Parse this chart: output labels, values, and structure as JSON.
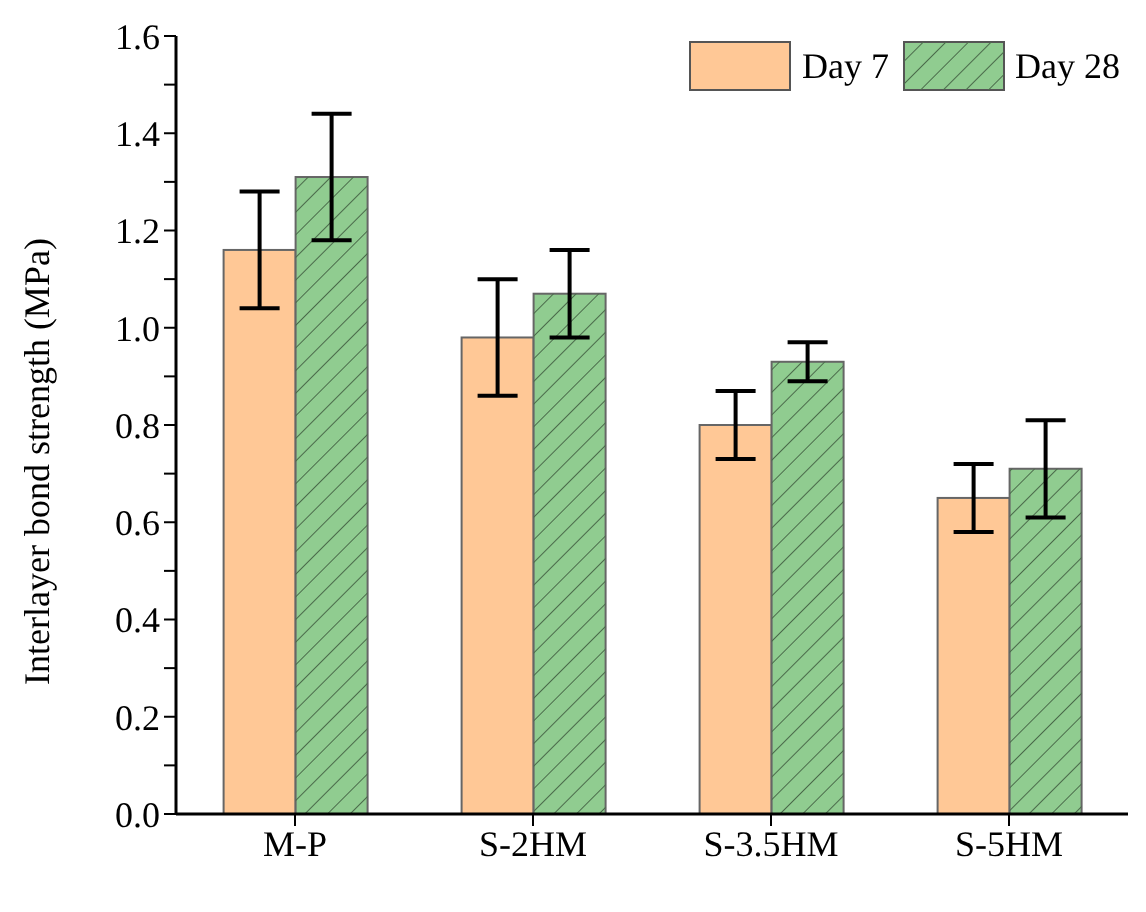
{
  "chart_data": {
    "type": "bar",
    "ylabel": "Interlayer bond strength (MPa)",
    "categories": [
      "M-P",
      "S-2HM",
      "S-3.5HM",
      "S-5HM"
    ],
    "series": [
      {
        "name": "Day 7",
        "color": "#ffc896",
        "values": [
          1.16,
          0.98,
          0.8,
          0.65
        ],
        "errors": [
          0.12,
          0.12,
          0.07,
          0.07
        ]
      },
      {
        "name": "Day 28",
        "color": "#90cc90",
        "values": [
          1.31,
          1.07,
          0.93,
          0.71
        ],
        "errors": [
          0.13,
          0.09,
          0.04,
          0.1
        ]
      }
    ],
    "ylim": [
      0,
      1.6
    ],
    "yticks": [
      {
        "value": 0,
        "label": "0.0"
      },
      {
        "value": 0.1,
        "label": null
      },
      {
        "value": 0.2,
        "label": "0.2"
      },
      {
        "value": 0.3,
        "label": null
      },
      {
        "value": 0.4,
        "label": "0.4"
      },
      {
        "value": 0.5,
        "label": null
      },
      {
        "value": 0.6,
        "label": "0.6"
      },
      {
        "value": 0.7,
        "label": null
      },
      {
        "value": 0.8,
        "label": "0.8"
      },
      {
        "value": 0.9,
        "label": null
      },
      {
        "value": 1,
        "label": "1.0"
      },
      {
        "value": 1.1,
        "label": null
      },
      {
        "value": 1.2,
        "label": "1.2"
      },
      {
        "value": 1.3,
        "label": null
      },
      {
        "value": 1.4,
        "label": "1.4"
      },
      {
        "value": 1.5,
        "label": null
      },
      {
        "value": 1.6,
        "label": "1.6"
      }
    ],
    "grid": false,
    "legend": "top right"
  }
}
